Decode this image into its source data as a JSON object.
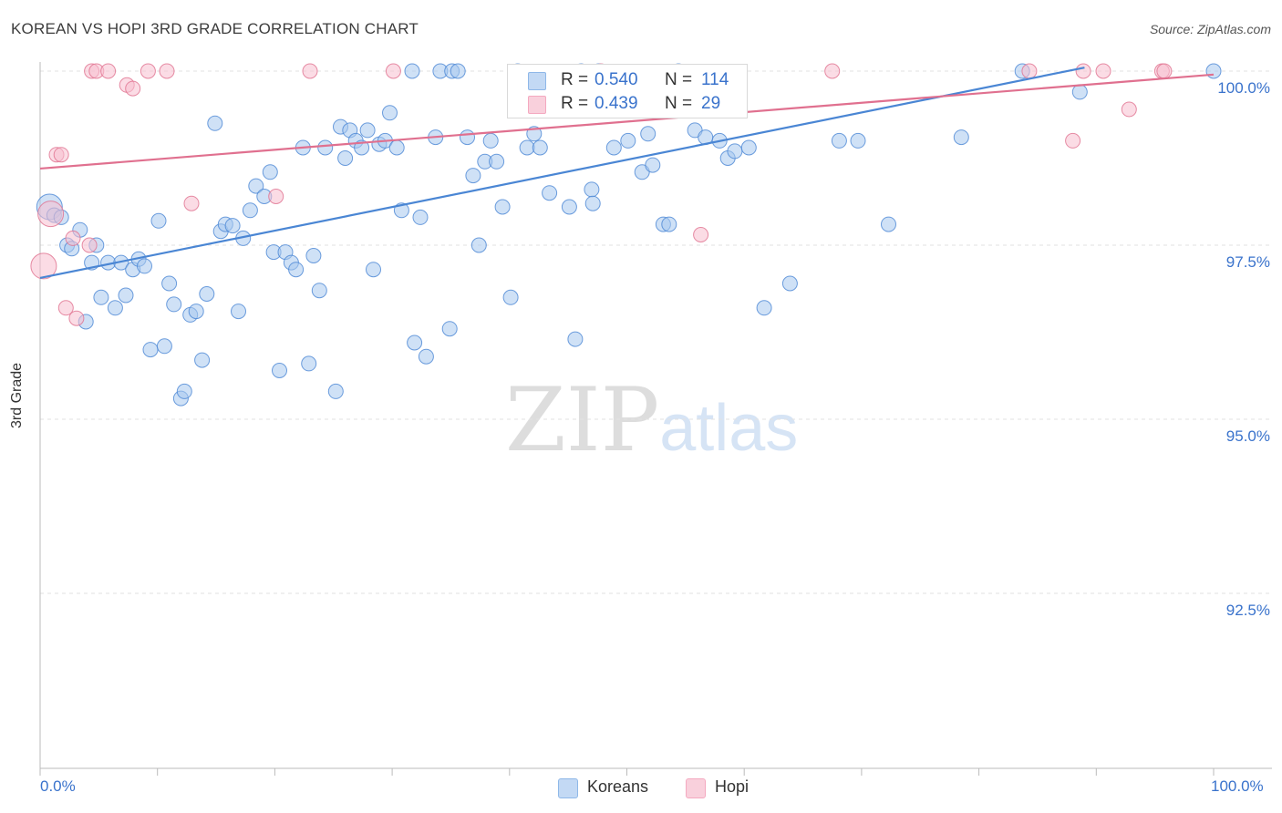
{
  "title": "KOREAN VS HOPI 3RD GRADE CORRELATION CHART",
  "source": "Source: ZipAtlas.com",
  "watermark": {
    "zip": "ZIP",
    "atlas": "atlas"
  },
  "legend_top": [
    {
      "r_label": "R =",
      "r_value": "0.540",
      "n_label": "N =",
      "n_value": "114",
      "color": "#8fb8e8"
    },
    {
      "r_label": "R =",
      "r_value": "0.439",
      "n_label": "N =",
      "n_value": "29",
      "color": "#f4a9c0"
    }
  ],
  "legend_bottom": [
    {
      "label": "Koreans",
      "color": "#8fb8e8"
    },
    {
      "label": "Hopi",
      "color": "#f4a9c0"
    }
  ],
  "chart_data": {
    "type": "scatter",
    "title": "KOREAN VS HOPI 3RD GRADE CORRELATION CHART",
    "xlabel": "",
    "ylabel": "3rd Grade",
    "xlim": [
      0,
      100
    ],
    "ylim": [
      90.3,
      100.3
    ],
    "x_tick_labels": [
      "0.0%",
      "100.0%"
    ],
    "y_ticks": [
      {
        "value": 100.0,
        "label": "100.0%"
      },
      {
        "value": 97.5,
        "label": "97.5%"
      },
      {
        "value": 95.0,
        "label": "95.0%"
      },
      {
        "value": 92.5,
        "label": "92.5%"
      }
    ],
    "grid": "horizontal dashed",
    "legend_position": "top-center",
    "series": [
      {
        "name": "Koreans",
        "color": "#4a86d4",
        "fill": "#a8c8ee",
        "trend": {
          "x": [
            0,
            89
          ],
          "y": [
            97.03,
            100.05
          ]
        },
        "points": [
          [
            0.8,
            98.05
          ],
          [
            1.2,
            97.93
          ],
          [
            1.8,
            97.9
          ],
          [
            2.3,
            97.5
          ],
          [
            2.7,
            97.45
          ],
          [
            3.4,
            97.72
          ],
          [
            3.9,
            96.4
          ],
          [
            4.4,
            97.25
          ],
          [
            4.8,
            97.5
          ],
          [
            5.2,
            96.75
          ],
          [
            5.8,
            97.25
          ],
          [
            6.4,
            96.6
          ],
          [
            6.9,
            97.25
          ],
          [
            7.3,
            96.78
          ],
          [
            7.9,
            97.15
          ],
          [
            8.4,
            97.3
          ],
          [
            8.9,
            97.2
          ],
          [
            9.4,
            96.0
          ],
          [
            10.1,
            97.85
          ],
          [
            10.6,
            96.05
          ],
          [
            11.0,
            96.95
          ],
          [
            11.4,
            96.65
          ],
          [
            12.0,
            95.3
          ],
          [
            12.3,
            95.4
          ],
          [
            12.8,
            96.5
          ],
          [
            13.3,
            96.55
          ],
          [
            13.8,
            95.85
          ],
          [
            14.2,
            96.8
          ],
          [
            14.9,
            99.25
          ],
          [
            15.4,
            97.7
          ],
          [
            15.8,
            97.8
          ],
          [
            16.4,
            97.78
          ],
          [
            16.9,
            96.55
          ],
          [
            17.3,
            97.6
          ],
          [
            17.9,
            98.0
          ],
          [
            18.4,
            98.35
          ],
          [
            19.1,
            98.2
          ],
          [
            19.6,
            98.55
          ],
          [
            19.9,
            97.4
          ],
          [
            20.4,
            95.7
          ],
          [
            20.9,
            97.4
          ],
          [
            21.4,
            97.25
          ],
          [
            21.8,
            97.15
          ],
          [
            22.4,
            98.9
          ],
          [
            22.9,
            95.8
          ],
          [
            23.3,
            97.35
          ],
          [
            23.8,
            96.85
          ],
          [
            24.3,
            98.9
          ],
          [
            25.2,
            95.4
          ],
          [
            25.6,
            99.2
          ],
          [
            26.0,
            98.75
          ],
          [
            26.4,
            99.15
          ],
          [
            26.9,
            99.0
          ],
          [
            27.4,
            98.9
          ],
          [
            27.9,
            99.15
          ],
          [
            28.4,
            97.15
          ],
          [
            28.9,
            98.95
          ],
          [
            29.4,
            99.0
          ],
          [
            29.8,
            99.4
          ],
          [
            30.4,
            98.9
          ],
          [
            30.8,
            98.0
          ],
          [
            31.7,
            100.0
          ],
          [
            31.9,
            96.1
          ],
          [
            32.4,
            97.9
          ],
          [
            32.9,
            95.9
          ],
          [
            33.7,
            99.05
          ],
          [
            34.1,
            100.0
          ],
          [
            34.9,
            96.3
          ],
          [
            35.1,
            100.0
          ],
          [
            35.6,
            100.0
          ],
          [
            36.4,
            99.05
          ],
          [
            36.9,
            98.5
          ],
          [
            37.4,
            97.5
          ],
          [
            37.9,
            98.7
          ],
          [
            38.4,
            99.0
          ],
          [
            38.9,
            98.7
          ],
          [
            39.4,
            98.05
          ],
          [
            40.1,
            96.75
          ],
          [
            40.7,
            100.0
          ],
          [
            41.5,
            98.9
          ],
          [
            42.1,
            99.1
          ],
          [
            42.6,
            98.9
          ],
          [
            43.4,
            98.25
          ],
          [
            45.1,
            98.05
          ],
          [
            45.6,
            96.15
          ],
          [
            46.1,
            100.0
          ],
          [
            47.0,
            98.3
          ],
          [
            47.1,
            98.1
          ],
          [
            47.6,
            100.0
          ],
          [
            48.9,
            98.9
          ],
          [
            50.1,
            99.0
          ],
          [
            51.3,
            98.55
          ],
          [
            51.8,
            99.1
          ],
          [
            52.2,
            98.65
          ],
          [
            53.1,
            97.8
          ],
          [
            53.6,
            97.8
          ],
          [
            54.4,
            100.0
          ],
          [
            55.8,
            99.15
          ],
          [
            56.7,
            99.05
          ],
          [
            57.9,
            99.0
          ],
          [
            58.6,
            98.75
          ],
          [
            59.2,
            98.85
          ],
          [
            61.7,
            96.6
          ],
          [
            63.9,
            96.95
          ],
          [
            68.1,
            99.0
          ],
          [
            69.7,
            99.0
          ],
          [
            72.3,
            97.8
          ],
          [
            78.5,
            99.05
          ],
          [
            83.7,
            100.0
          ],
          [
            88.6,
            99.7
          ],
          [
            100.0,
            100.0
          ],
          [
            60.4,
            98.9
          ]
        ]
      },
      {
        "name": "Hopi",
        "color": "#e0708f",
        "fill": "#f7c0cf",
        "trend": {
          "x": [
            0,
            100
          ],
          "y": [
            98.6,
            99.95
          ]
        },
        "points": [
          [
            0.3,
            97.2
          ],
          [
            0.9,
            97.95
          ],
          [
            1.4,
            98.8
          ],
          [
            1.8,
            98.8
          ],
          [
            2.2,
            96.6
          ],
          [
            2.8,
            97.6
          ],
          [
            3.1,
            96.45
          ],
          [
            4.2,
            97.5
          ],
          [
            4.4,
            100.0
          ],
          [
            4.8,
            100.0
          ],
          [
            5.8,
            100.0
          ],
          [
            7.4,
            99.8
          ],
          [
            7.9,
            99.75
          ],
          [
            9.2,
            100.0
          ],
          [
            10.8,
            100.0
          ],
          [
            12.9,
            98.1
          ],
          [
            20.1,
            98.2
          ],
          [
            23.0,
            100.0
          ],
          [
            30.1,
            100.0
          ],
          [
            47.8,
            100.0
          ],
          [
            56.3,
            97.65
          ],
          [
            67.5,
            100.0
          ],
          [
            84.3,
            100.0
          ],
          [
            88.0,
            99.0
          ],
          [
            88.9,
            100.0
          ],
          [
            90.6,
            100.0
          ],
          [
            92.8,
            99.45
          ],
          [
            95.6,
            100.0
          ],
          [
            95.8,
            100.0
          ]
        ]
      }
    ]
  }
}
